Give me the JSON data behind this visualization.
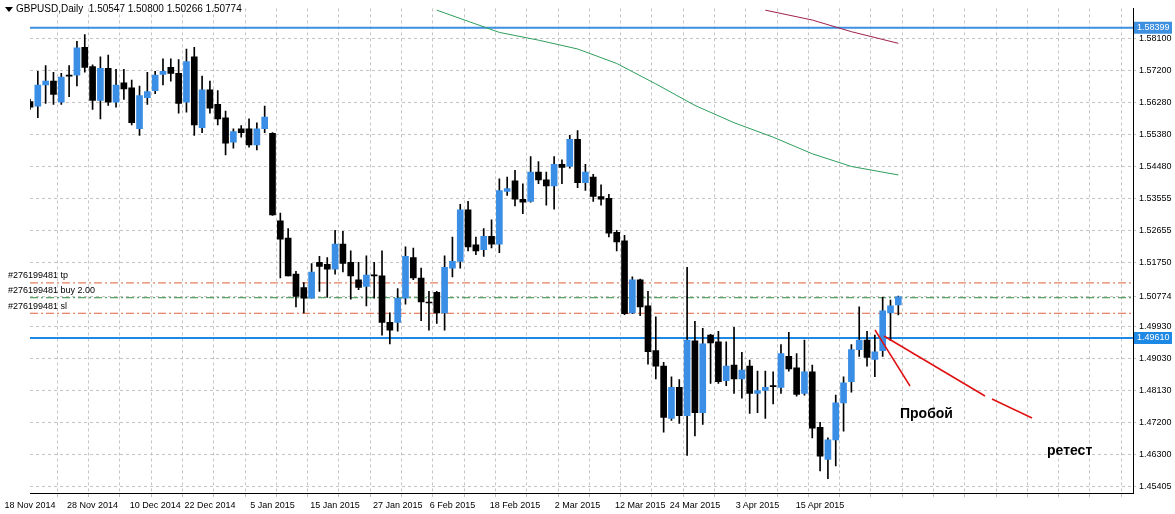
{
  "chart_data": {
    "type": "candlestick",
    "title": "GBPUSD,Daily  1.50547 1.50800 1.50266 1.50774",
    "categories": [
      "18 Nov 2014",
      null,
      null,
      null,
      null,
      null,
      null,
      null,
      "28 Nov 2014",
      null,
      null,
      null,
      null,
      null,
      null,
      null,
      "10 Dec 2014",
      null,
      null,
      null,
      null,
      null,
      null,
      "22 Dec 2014",
      null,
      null,
      null,
      null,
      null,
      null,
      null,
      "5 Jan 2015",
      null,
      null,
      null,
      null,
      null,
      null,
      null,
      "15 Jan 2015",
      null,
      null,
      null,
      null,
      null,
      null,
      null,
      "27 Jan 2015",
      null,
      null,
      null,
      null,
      null,
      null,
      "6 Feb 2015",
      null,
      null,
      null,
      null,
      null,
      null,
      null,
      "18 Feb 2015",
      null,
      null,
      null,
      null,
      null,
      null,
      null,
      "2 Mar 2015",
      null,
      null,
      null,
      null,
      null,
      null,
      null,
      "12 Mar 2015",
      null,
      null,
      null,
      null,
      null,
      null,
      "24 Mar 2015",
      null,
      null,
      null,
      null,
      null,
      null,
      null,
      "3 Apr 2015",
      null,
      null,
      null,
      null,
      null,
      null,
      null,
      "15 Apr 2015",
      null,
      null,
      null,
      null,
      null,
      null,
      null,
      null,
      null,
      null,
      null,
      null,
      null,
      null,
      null,
      null,
      null,
      null,
      null,
      null,
      null,
      null,
      null,
      null,
      null,
      null,
      null,
      null,
      null,
      null,
      null,
      null,
      null,
      null,
      null,
      null,
      null,
      null,
      null,
      null
    ],
    "ohlc": [
      [
        1.5631,
        1.5637,
        1.5609,
        1.5615
      ],
      [
        1.5618,
        1.5717,
        1.5585,
        1.5678
      ],
      [
        1.5678,
        1.5733,
        1.5626,
        1.5689
      ],
      [
        1.5689,
        1.5714,
        1.5623,
        1.5651
      ],
      [
        1.5629,
        1.5711,
        1.5623,
        1.57
      ],
      [
        1.5703,
        1.5733,
        1.5645,
        1.5703
      ],
      [
        1.5706,
        1.5802,
        1.5675,
        1.5783
      ],
      [
        1.5785,
        1.5821,
        1.5714,
        1.5728
      ],
      [
        1.573,
        1.5735,
        1.5609,
        1.5634
      ],
      [
        1.5634,
        1.5758,
        1.5582,
        1.5725
      ],
      [
        1.5725,
        1.5763,
        1.562,
        1.5629
      ],
      [
        1.5629,
        1.5722,
        1.5615,
        1.5678
      ],
      [
        1.5684,
        1.5722,
        1.5637,
        1.5667
      ],
      [
        1.567,
        1.5692,
        1.5565,
        1.5571
      ],
      [
        1.5554,
        1.5675,
        1.5535,
        1.5648
      ],
      [
        1.5642,
        1.5714,
        1.5623,
        1.5659
      ],
      [
        1.5662,
        1.5717,
        1.5653,
        1.5706
      ],
      [
        1.5708,
        1.5752,
        1.5678,
        1.5717
      ],
      [
        1.5728,
        1.5752,
        1.5689,
        1.5711
      ],
      [
        1.5711,
        1.575,
        1.5598,
        1.5626
      ],
      [
        1.5629,
        1.578,
        1.5601,
        1.5744
      ],
      [
        1.5758,
        1.5785,
        1.5535,
        1.5565
      ],
      [
        1.5557,
        1.5703,
        1.5543,
        1.5664
      ],
      [
        1.5664,
        1.5689,
        1.5598,
        1.5612
      ],
      [
        1.5623,
        1.5662,
        1.5565,
        1.5582
      ],
      [
        1.5585,
        1.5604,
        1.548,
        1.5513
      ],
      [
        1.5516,
        1.5554,
        1.5499,
        1.5546
      ],
      [
        1.5554,
        1.5563,
        1.553,
        1.5543
      ],
      [
        1.5554,
        1.5582,
        1.5502,
        1.5508
      ],
      [
        1.5508,
        1.5571,
        1.5494,
        1.5554
      ],
      [
        1.5554,
        1.5618,
        1.5543,
        1.5587
      ],
      [
        1.5541,
        1.5543,
        1.5308,
        1.531
      ],
      [
        1.5293,
        1.5315,
        1.5131,
        1.5241
      ],
      [
        1.5244,
        1.5271,
        1.5137,
        1.5137
      ],
      [
        1.5142,
        1.515,
        1.5049,
        1.5079
      ],
      [
        1.5104,
        1.5118,
        1.5032,
        1.5074
      ],
      [
        1.5074,
        1.5172,
        1.5074,
        1.5148
      ],
      [
        1.5175,
        1.5192,
        1.5093,
        1.5164
      ],
      [
        1.517,
        1.5189,
        1.5076,
        1.5156
      ],
      [
        1.5156,
        1.5266,
        1.5142,
        1.5227
      ],
      [
        1.5227,
        1.5263,
        1.5148,
        1.5172
      ],
      [
        1.5175,
        1.5208,
        1.5071,
        1.5137
      ],
      [
        1.5126,
        1.5175,
        1.5098,
        1.5104
      ],
      [
        1.5107,
        1.5194,
        1.5052,
        1.5139
      ],
      [
        1.5137,
        1.5175,
        1.5074,
        1.5137
      ],
      [
        1.5137,
        1.5208,
        1.4969,
        1.5005
      ],
      [
        1.5005,
        1.5032,
        1.4944,
        1.4983
      ],
      [
        1.5005,
        1.5101,
        1.498,
        1.5074
      ],
      [
        1.5074,
        1.5219,
        1.5057,
        1.5192
      ],
      [
        1.5189,
        1.5216,
        1.5126,
        1.5131
      ],
      [
        1.5131,
        1.5159,
        1.501,
        1.5063
      ],
      [
        1.5063,
        1.5093,
        1.4983,
        1.506
      ],
      [
        1.509,
        1.5093,
        1.5002,
        1.5032
      ],
      [
        1.5032,
        1.5194,
        1.4983,
        1.5161
      ],
      [
        1.5159,
        1.5247,
        1.5134,
        1.5178
      ],
      [
        1.5178,
        1.534,
        1.5159,
        1.5324
      ],
      [
        1.5324,
        1.5348,
        1.5208,
        1.5219
      ],
      [
        1.5225,
        1.5247,
        1.5197,
        1.5208
      ],
      [
        1.5211,
        1.5271,
        1.5192,
        1.5249
      ],
      [
        1.5249,
        1.5296,
        1.5216,
        1.5227
      ],
      [
        1.5227,
        1.5412,
        1.5203,
        1.5379
      ],
      [
        1.5376,
        1.5417,
        1.5365,
        1.5384
      ],
      [
        1.5406,
        1.5436,
        1.5335,
        1.5354
      ],
      [
        1.5354,
        1.5398,
        1.5313,
        1.5346
      ],
      [
        1.5348,
        1.5475,
        1.5346,
        1.5431
      ],
      [
        1.5431,
        1.5461,
        1.5398,
        1.5409
      ],
      [
        1.5409,
        1.5431,
        1.5337,
        1.5392
      ],
      [
        1.5392,
        1.5475,
        1.5326,
        1.5453
      ],
      [
        1.5453,
        1.5466,
        1.5398,
        1.5444
      ],
      [
        1.5447,
        1.5535,
        1.5442,
        1.5524
      ],
      [
        1.5524,
        1.5549,
        1.5387,
        1.5401
      ],
      [
        1.5401,
        1.5453,
        1.5379,
        1.5431
      ],
      [
        1.5417,
        1.5425,
        1.5348,
        1.5362
      ],
      [
        1.5362,
        1.5395,
        1.5337,
        1.5354
      ],
      [
        1.5357,
        1.5368,
        1.5247,
        1.5258
      ],
      [
        1.526,
        1.5266,
        1.5208,
        1.5233
      ],
      [
        1.5236,
        1.5252,
        1.5027,
        1.503
      ],
      [
        1.5032,
        1.5134,
        1.503,
        1.5126
      ],
      [
        1.5126,
        1.5128,
        1.5024,
        1.5049
      ],
      [
        1.5052,
        1.5093,
        1.4887,
        1.4922
      ],
      [
        1.4925,
        1.5021,
        1.4845,
        1.4881
      ],
      [
        1.4881,
        1.4892,
        1.4694,
        1.4736
      ],
      [
        1.4733,
        1.4851,
        1.4727,
        1.4821
      ],
      [
        1.4821,
        1.4843,
        1.4719,
        1.4741
      ],
      [
        1.4741,
        1.5161,
        1.4628,
        1.4955
      ],
      [
        1.4953,
        1.5008,
        1.4683,
        1.4749
      ],
      [
        1.4749,
        1.4988,
        1.4716,
        1.4944
      ],
      [
        1.4969,
        1.4971,
        1.4832,
        1.4947
      ],
      [
        1.495,
        1.498,
        1.4832,
        1.4837
      ],
      [
        1.484,
        1.495,
        1.4826,
        1.4881
      ],
      [
        1.4884,
        1.4991,
        1.4804,
        1.4845
      ],
      [
        1.4845,
        1.492,
        1.479,
        1.487
      ],
      [
        1.4881,
        1.4898,
        1.4747,
        1.4804
      ],
      [
        1.4804,
        1.4867,
        1.4749,
        1.4812
      ],
      [
        1.4812,
        1.4867,
        1.4733,
        1.4821
      ],
      [
        1.4823,
        1.4865,
        1.4774,
        1.4823
      ],
      [
        1.4821,
        1.4942,
        1.4804,
        1.4917
      ],
      [
        1.4909,
        1.4977,
        1.4867,
        1.4873
      ],
      [
        1.4876,
        1.4917,
        1.4796,
        1.4801
      ],
      [
        1.4804,
        1.4955,
        1.4799,
        1.4865
      ],
      [
        1.4865,
        1.4884,
        1.4678,
        1.4705
      ],
      [
        1.4708,
        1.4722,
        1.4584,
        1.4626
      ],
      [
        1.4617,
        1.4678,
        1.4562,
        1.4672
      ],
      [
        1.4672,
        1.4799,
        1.4598,
        1.4777
      ],
      [
        1.4777,
        1.4851,
        1.4697,
        1.4834
      ],
      [
        1.4837,
        1.4942,
        1.4807,
        1.4928
      ],
      [
        1.4928,
        1.5049,
        1.4909,
        1.4955
      ],
      [
        1.4955,
        1.498,
        1.4881,
        1.4906
      ],
      [
        1.49,
        1.4969,
        1.4851,
        1.4922
      ],
      [
        1.4925,
        1.5076,
        1.4909,
        1.5038
      ],
      [
        1.5032,
        1.5068,
        1.4953,
        1.5052
      ],
      [
        1.50547,
        1.508,
        1.50266,
        1.50774
      ],
      null,
      null,
      null,
      null,
      null,
      null,
      null,
      null,
      null,
      null,
      null,
      null,
      null,
      null,
      null,
      null,
      null,
      null,
      null,
      null,
      null,
      null,
      null,
      null,
      null,
      null,
      null,
      null,
      null,
      null
    ],
    "colors": [
      "#000000",
      "#3a8ee6",
      "#3a8ee6",
      "#000000",
      "#3a8ee6",
      "#000000",
      "#3a8ee6",
      "#000000",
      "#000000",
      "#3a8ee6",
      "#000000",
      "#3a8ee6",
      "#000000",
      "#000000",
      "#3a8ee6",
      "#3a8ee6",
      "#3a8ee6",
      "#3a8ee6",
      "#000000",
      "#000000",
      "#3a8ee6",
      "#000000",
      "#3a8ee6",
      "#000000",
      "#000000",
      "#000000",
      "#3a8ee6",
      "#000000",
      "#000000",
      "#3a8ee6",
      "#3a8ee6",
      "#000000",
      "#000000",
      "#000000",
      "#000000",
      "#000000",
      "#3a8ee6",
      "#000000",
      "#000000",
      "#3a8ee6",
      "#000000",
      "#000000",
      "#000000",
      "#3a8ee6",
      "#000000",
      "#000000",
      "#000000",
      "#3a8ee6",
      "#3a8ee6",
      "#000000",
      "#000000",
      "#000000",
      "#000000",
      "#3a8ee6",
      "#3a8ee6",
      "#3a8ee6",
      "#000000",
      "#000000",
      "#3a8ee6",
      "#000000",
      "#3a8ee6",
      "#3a8ee6",
      "#000000",
      "#000000",
      "#3a8ee6",
      "#000000",
      "#000000",
      "#3a8ee6",
      "#000000",
      "#3a8ee6",
      "#000000",
      "#3a8ee6",
      "#000000",
      "#000000",
      "#000000",
      "#000000",
      "#000000",
      "#3a8ee6",
      "#000000",
      "#000000",
      "#000000",
      "#000000",
      "#3a8ee6",
      "#000000",
      "#3a8ee6",
      "#000000",
      "#3a8ee6",
      "#000000",
      "#000000",
      "#3a8ee6",
      "#000000",
      "#3a8ee6",
      "#000000",
      "#3a8ee6",
      "#3a8ee6",
      "#000000",
      "#3a8ee6",
      "#000000",
      "#000000",
      "#3a8ee6",
      "#000000",
      "#000000",
      "#3a8ee6",
      "#3a8ee6",
      "#3a8ee6",
      "#3a8ee6",
      "#3a8ee6",
      "#000000",
      "#3a8ee6",
      "#3a8ee6",
      "#3a8ee6",
      "#3a8ee6",
      null,
      null,
      null,
      null,
      null,
      null,
      null,
      null,
      null,
      null,
      null,
      null,
      null,
      null,
      null,
      null,
      null,
      null,
      null,
      null,
      null,
      null,
      null,
      null,
      null,
      null,
      null,
      null,
      null,
      null
    ],
    "series": [
      {
        "type": "line",
        "color": "#2e9e5e",
        "values": [
          null,
          null,
          null,
          null,
          null,
          null,
          null,
          null,
          null,
          null,
          null,
          null,
          null,
          null,
          null,
          null,
          null,
          null,
          null,
          null,
          null,
          null,
          null,
          null,
          null,
          null,
          null,
          null,
          null,
          null,
          null,
          null,
          null,
          null,
          null,
          null,
          null,
          null,
          null,
          null,
          null,
          null,
          null,
          null,
          null,
          null,
          null,
          null,
          null,
          null,
          null,
          null,
          1.589,
          null,
          null,
          null,
          null,
          null,
          null,
          null,
          1.5827,
          null,
          null,
          null,
          null,
          1.5805,
          null,
          null,
          null,
          null,
          1.578,
          null,
          null,
          null,
          null,
          1.5739,
          null,
          null,
          null,
          null,
          1.5681,
          null,
          null,
          null,
          null,
          1.562,
          null,
          null,
          null,
          null,
          1.5571,
          null,
          null,
          null,
          null,
          1.553,
          null,
          null,
          null,
          null,
          1.5483,
          null,
          null,
          null,
          null,
          1.5447,
          null,
          null,
          null,
          null,
          null,
          1.5423,
          null,
          null,
          null,
          null,
          null,
          null,
          null,
          null,
          null,
          null,
          null,
          null,
          null,
          null,
          null,
          null,
          null,
          null,
          null,
          null,
          null,
          null,
          null,
          null,
          null,
          null,
          null,
          null,
          null,
          null
        ]
      },
      {
        "type": "line",
        "color": "#a0204a",
        "values": [
          null,
          null,
          null,
          null,
          null,
          null,
          null,
          null,
          null,
          null,
          null,
          null,
          null,
          null,
          null,
          null,
          null,
          null,
          null,
          null,
          null,
          null,
          null,
          null,
          null,
          null,
          null,
          null,
          null,
          null,
          null,
          null,
          null,
          null,
          null,
          null,
          null,
          null,
          null,
          null,
          null,
          null,
          null,
          null,
          null,
          null,
          null,
          null,
          null,
          null,
          null,
          null,
          null,
          null,
          null,
          null,
          null,
          null,
          null,
          null,
          null,
          null,
          null,
          null,
          null,
          null,
          null,
          null,
          null,
          null,
          null,
          null,
          null,
          null,
          null,
          null,
          null,
          null,
          null,
          null,
          null,
          null,
          null,
          null,
          null,
          null,
          null,
          null,
          null,
          null,
          null,
          null,
          null,
          null,
          1.589,
          null,
          null,
          null,
          null,
          null,
          1.5862,
          null,
          null,
          null,
          null,
          1.5829,
          null,
          null,
          null,
          null,
          null,
          1.5796,
          null,
          null,
          null,
          null,
          null,
          null,
          null,
          null,
          null,
          null,
          null,
          null,
          null,
          null,
          null,
          null,
          null,
          null,
          null,
          null,
          null,
          null,
          null,
          null,
          null,
          null,
          null,
          null,
          null,
          null
        ]
      }
    ],
    "ylim": [
      1.4521,
      1.5895
    ],
    "yticks": [
      {
        "value": 1.581,
        "label": "1.58100"
      },
      {
        "value": 1.572,
        "label": "1.57200"
      },
      {
        "value": 1.5628,
        "label": "1.56280"
      },
      {
        "value": 1.5538,
        "label": "1.55380"
      },
      {
        "value": 1.5448,
        "label": "1.54480"
      },
      1.53555,
      1.52655,
      {
        "value": 1.5175,
        "label": "1.51750"
      },
      1.50774,
      {
        "value": 1.4993,
        "label": "1.49930"
      },
      {
        "value": 1.4903,
        "label": "1.49030"
      },
      {
        "value": 1.4813,
        "label": "1.48130"
      },
      {
        "value": 1.472,
        "label": "1.47200"
      },
      {
        "value": 1.463,
        "label": "1.46300"
      },
      1.45405
    ],
    "grid": true,
    "ref_lines": [
      {
        "axis": "y",
        "value": 1.58399,
        "label": "1.58399",
        "color": "#3d8fe0",
        "line_style": "solid"
      },
      {
        "axis": "y",
        "value": 1.4961,
        "label": "1.49610",
        "color": "#1e88e5",
        "line_style": "solid"
      },
      {
        "axis": "y",
        "value": 1.5117,
        "label": "#276199481 tp",
        "color": "#e0603c",
        "line_style": "dashed"
      },
      {
        "axis": "y",
        "value": 1.5075,
        "label": "#276199481 buy 2.00",
        "color": "#2e8b3a",
        "line_style": "dashed"
      },
      {
        "axis": "y",
        "value": 1.5031,
        "label": "#276199481 sl",
        "color": "#e0603c",
        "line_style": "dashed"
      }
    ],
    "annotations": [
      "Пробой",
      "ретест"
    ]
  }
}
